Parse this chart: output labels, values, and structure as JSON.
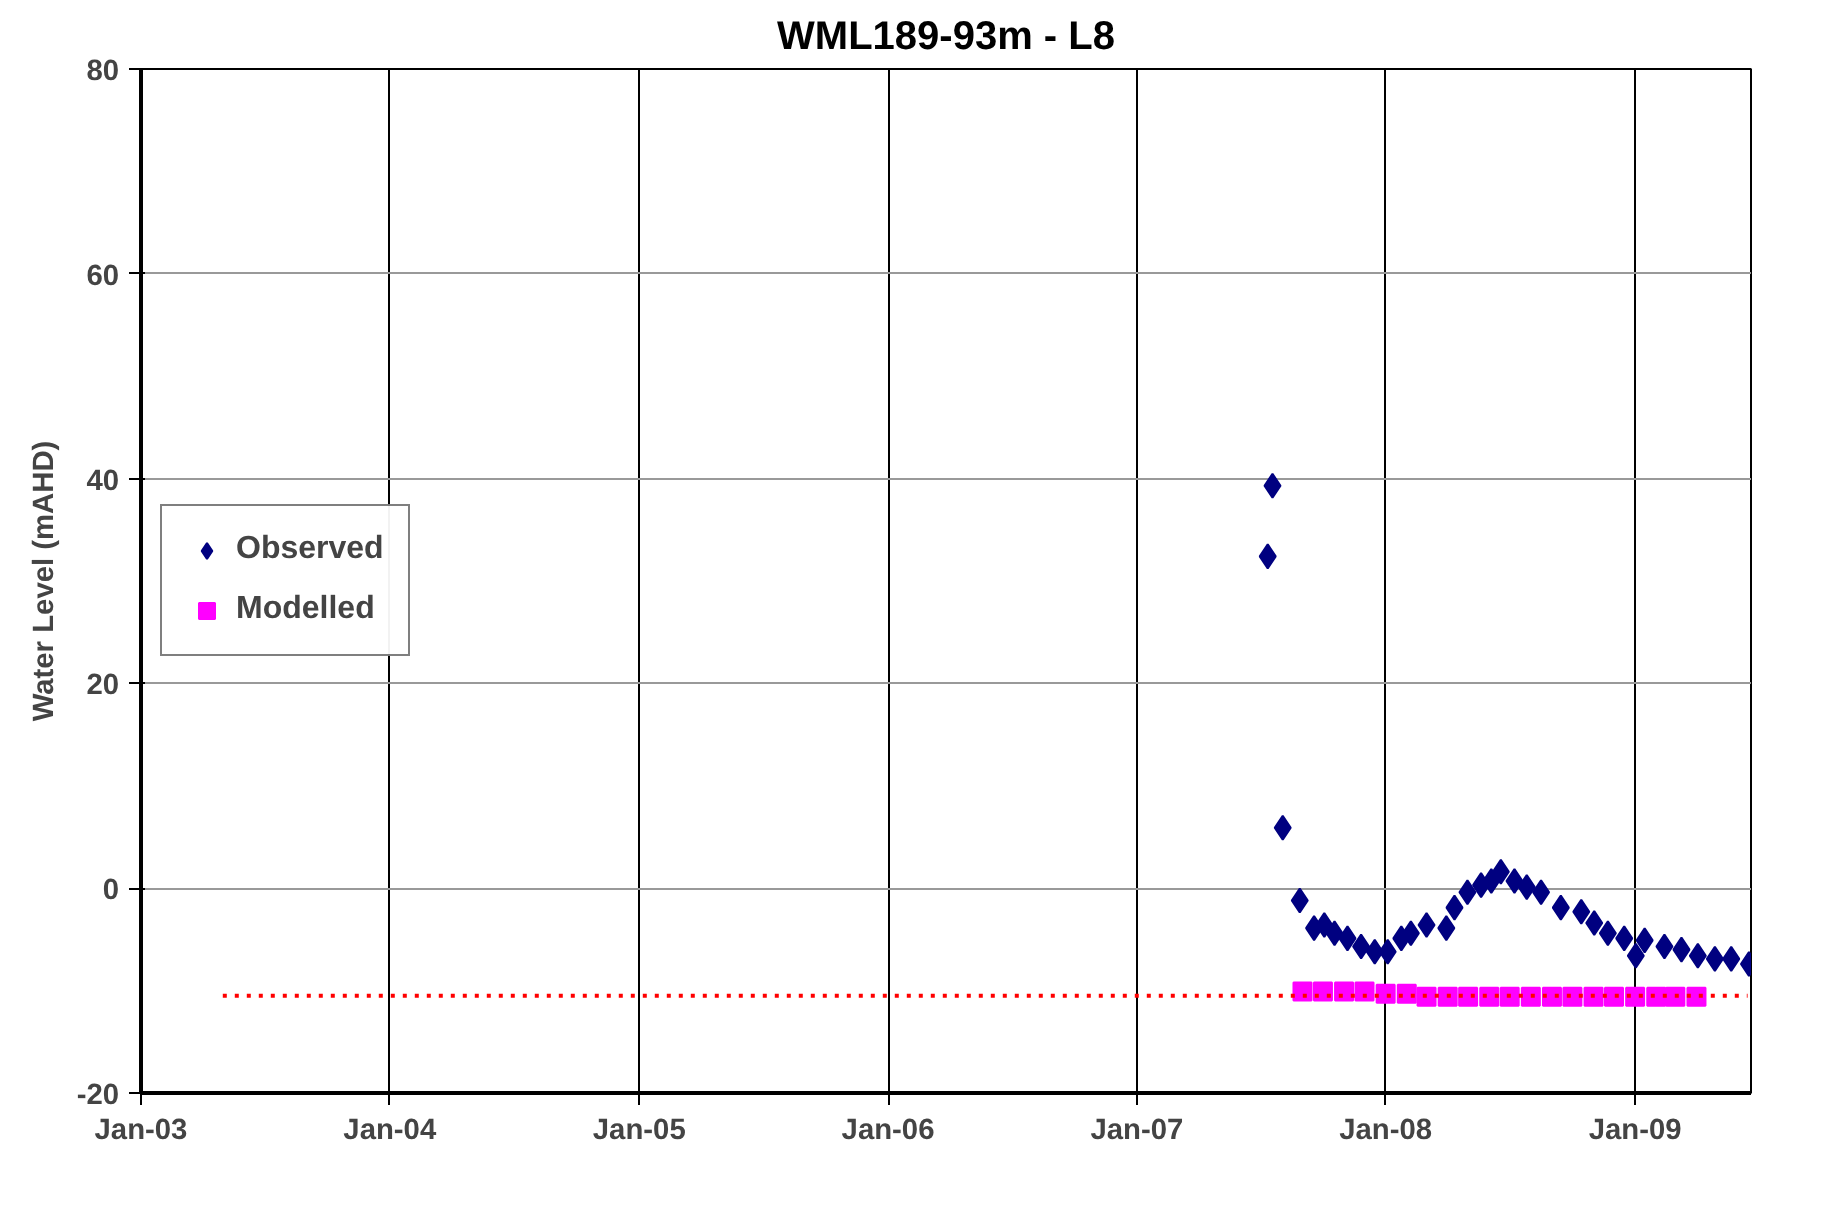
{
  "chart_data": {
    "type": "scatter",
    "title": "WML189-93m - L8",
    "ylabel": "Water Level (mAHD)",
    "xlim": [
      "2003-01-01",
      "2009-06-20"
    ],
    "xticks": [
      {
        "value": "2003-01-01",
        "label": "Jan-03"
      },
      {
        "value": "2004-01-01",
        "label": "Jan-04"
      },
      {
        "value": "2005-01-01",
        "label": "Jan-05"
      },
      {
        "value": "2006-01-01",
        "label": "Jan-06"
      },
      {
        "value": "2007-01-01",
        "label": "Jan-07"
      },
      {
        "value": "2008-01-01",
        "label": "Jan-08"
      },
      {
        "value": "2009-01-01",
        "label": "Jan-09"
      }
    ],
    "ylim": [
      -20,
      80
    ],
    "yticks": [
      -20,
      0,
      20,
      40,
      60,
      80
    ],
    "grid": true,
    "legend": "left",
    "series": [
      {
        "name": "Observed",
        "marker": "diamond",
        "color": "#000080",
        "x": [
          "2007-07-12",
          "2007-07-19",
          "2007-08-03",
          "2007-08-28",
          "2007-09-18",
          "2007-10-03",
          "2007-10-18",
          "2007-11-06",
          "2007-11-26",
          "2007-12-16",
          "2008-01-04",
          "2008-01-24",
          "2008-02-07",
          "2008-03-01",
          "2008-03-30",
          "2008-04-11",
          "2008-04-30",
          "2008-05-20",
          "2008-06-04",
          "2008-06-18",
          "2008-07-08",
          "2008-07-26",
          "2008-08-16",
          "2008-09-14",
          "2008-10-14",
          "2008-11-02",
          "2008-11-22",
          "2008-12-16",
          "2009-01-02",
          "2009-01-15",
          "2009-02-13",
          "2009-03-10",
          "2009-04-03",
          "2009-04-28",
          "2009-05-22",
          "2009-06-17"
        ],
        "values": [
          32.4,
          39.3,
          5.9,
          -1.2,
          -3.9,
          -3.6,
          -4.4,
          -4.9,
          -5.7,
          -6.2,
          -6.2,
          -4.9,
          -4.4,
          -3.6,
          -3.9,
          -1.9,
          -0.4,
          0.3,
          0.7,
          1.6,
          0.7,
          0.1,
          -0.4,
          -1.9,
          -2.3,
          -3.4,
          -4.4,
          -4.9,
          -6.6,
          -5.1,
          -5.7,
          -6.0,
          -6.6,
          -6.9,
          -6.9,
          -7.4
        ]
      },
      {
        "name": "Modelled",
        "marker": "square",
        "color": "#ff00ff",
        "x": [
          "2007-09-01",
          "2007-10-01",
          "2007-11-01",
          "2007-12-01",
          "2008-01-01",
          "2008-02-01",
          "2008-03-01",
          "2008-04-01",
          "2008-05-01",
          "2008-06-01",
          "2008-07-01",
          "2008-08-01",
          "2008-09-01",
          "2008-10-01",
          "2008-11-01",
          "2008-12-01",
          "2009-01-01",
          "2009-02-01",
          "2009-03-01",
          "2009-04-01"
        ],
        "values": [
          -10.1,
          -10.1,
          -10.1,
          -10.1,
          -10.3,
          -10.3,
          -10.6,
          -10.6,
          -10.6,
          -10.6,
          -10.6,
          -10.6,
          -10.6,
          -10.6,
          -10.6,
          -10.6,
          -10.6,
          -10.6,
          -10.6,
          -10.6
        ]
      },
      {
        "type": "line",
        "line_style": "dotted",
        "color": "#ff0000",
        "x": [
          "2003-05-01",
          "2009-06-15"
        ],
        "values": [
          -10.5,
          -10.5
        ]
      }
    ]
  }
}
